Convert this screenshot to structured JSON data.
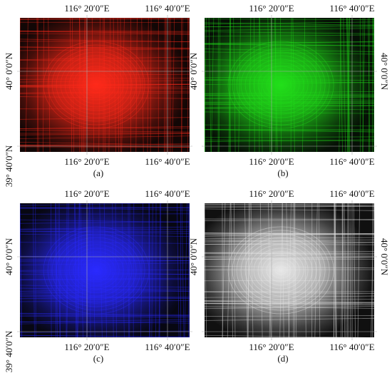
{
  "panels": [
    {
      "caption": "(a)",
      "color": "#ff2a1a",
      "top_labels": [
        "116° 20′0″E",
        "116° 40′0″E"
      ],
      "bottom_labels": [
        "116° 20′0″E",
        "116° 40′0″E"
      ],
      "left_labels": [
        "40° 0′0″N",
        "39° 40′0″N"
      ],
      "right_labels": []
    },
    {
      "caption": "(b)",
      "color": "#22e01a",
      "top_labels": [
        "116° 20′0″E",
        "116° 40′0″E"
      ],
      "bottom_labels": [
        "116° 20′0″E",
        "116° 40′0″E"
      ],
      "left_labels": [
        "40° 0′0″N"
      ],
      "right_labels": [
        "40° 0′0″N"
      ]
    },
    {
      "caption": "(c)",
      "color": "#2a2aff",
      "top_labels": [
        "116° 20′0″E",
        "116° 40′0″E"
      ],
      "bottom_labels": [
        "116° 20′0″E",
        "116° 40′0″E"
      ],
      "left_labels": [
        "40° 0′0″N",
        "39° 40′0″N"
      ],
      "right_labels": []
    },
    {
      "caption": "(d)",
      "color": "#e8e8e8",
      "top_labels": [
        "116° 20′0″E",
        "116° 40′0″E"
      ],
      "bottom_labels": [
        "116° 20′0″E",
        "116° 40′0″E"
      ],
      "left_labels": [
        "40° 0′0″N"
      ],
      "right_labels": [
        "40° 0′0″N"
      ]
    }
  ]
}
